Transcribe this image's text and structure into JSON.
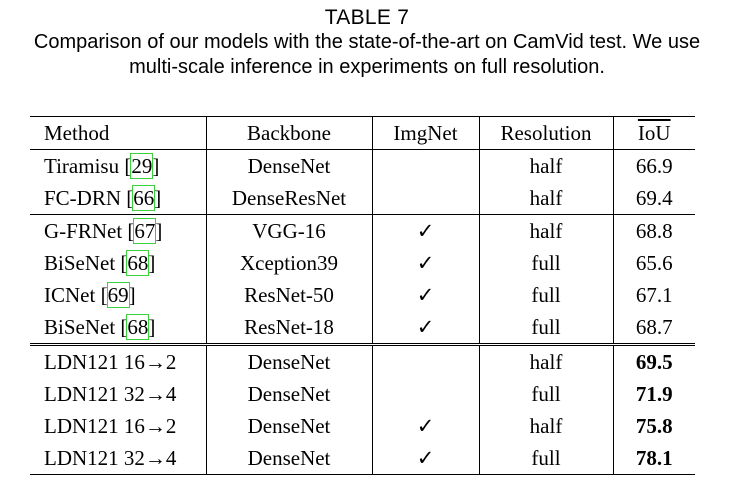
{
  "caption": {
    "label": "TABLE 7",
    "text": "Comparison of our models with the state-of-the-art on CamVid test. We use multi-scale inference in experiments on full resolution."
  },
  "table": {
    "headers": [
      "Method",
      "Backbone",
      "ImgNet",
      "Resolution",
      "IoU"
    ],
    "groups": [
      [
        {
          "method": "Tiramisu",
          "ref": "29",
          "backbone": "DenseNet",
          "imgnet": "",
          "resolution": "half",
          "iou": "66.9"
        },
        {
          "method": "FC-DRN",
          "ref": "66",
          "backbone": "DenseResNet",
          "imgnet": "",
          "resolution": "half",
          "iou": "69.4"
        }
      ],
      [
        {
          "method": "G-FRNet",
          "ref": "67",
          "backbone": "VGG-16",
          "imgnet": "✓",
          "resolution": "half",
          "iou": "68.8"
        },
        {
          "method": "BiSeNet",
          "ref": "68",
          "backbone": "Xception39",
          "imgnet": "✓",
          "resolution": "full",
          "iou": "65.6"
        },
        {
          "method": "ICNet",
          "ref": "69",
          "backbone": "ResNet-50",
          "imgnet": "✓",
          "resolution": "full",
          "iou": "67.1"
        },
        {
          "method": "BiSeNet",
          "ref": "68",
          "backbone": "ResNet-18",
          "imgnet": "✓",
          "resolution": "full",
          "iou": "68.7"
        }
      ],
      [
        {
          "method": "LDN121 16→2",
          "ref": "",
          "backbone": "DenseNet",
          "imgnet": "",
          "resolution": "half",
          "iou": "69.5"
        },
        {
          "method": "LDN121 32→4",
          "ref": "",
          "backbone": "DenseNet",
          "imgnet": "",
          "resolution": "full",
          "iou": "71.9"
        },
        {
          "method": "LDN121 16→2",
          "ref": "",
          "backbone": "DenseNet",
          "imgnet": "✓",
          "resolution": "half",
          "iou": "75.8"
        },
        {
          "method": "LDN121 32→4",
          "ref": "",
          "backbone": "DenseNet",
          "imgnet": "✓",
          "resolution": "full",
          "iou": "78.1"
        }
      ]
    ]
  }
}
